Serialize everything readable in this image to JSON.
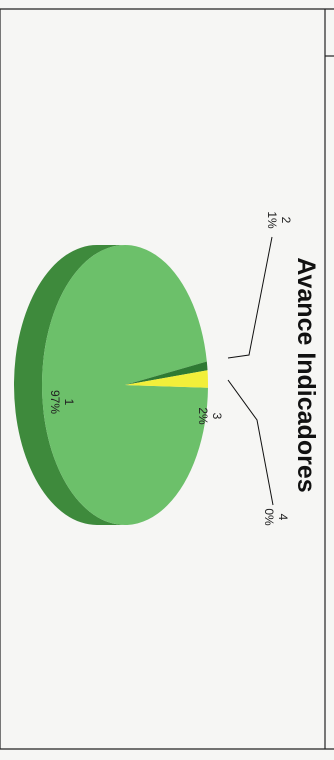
{
  "chart_data": {
    "type": "pie",
    "title": "Avance Indicadores",
    "categories": [
      "1",
      "2",
      "3",
      "4"
    ],
    "values": [
      97,
      1,
      2,
      0
    ],
    "percent_labels": [
      "97%",
      "1%",
      "2%",
      "0%"
    ],
    "colors": [
      "#6cc06a",
      "#2f7a33",
      "#f2ef3a",
      "#9acd5a"
    ],
    "legend": "none",
    "style": "3d"
  }
}
